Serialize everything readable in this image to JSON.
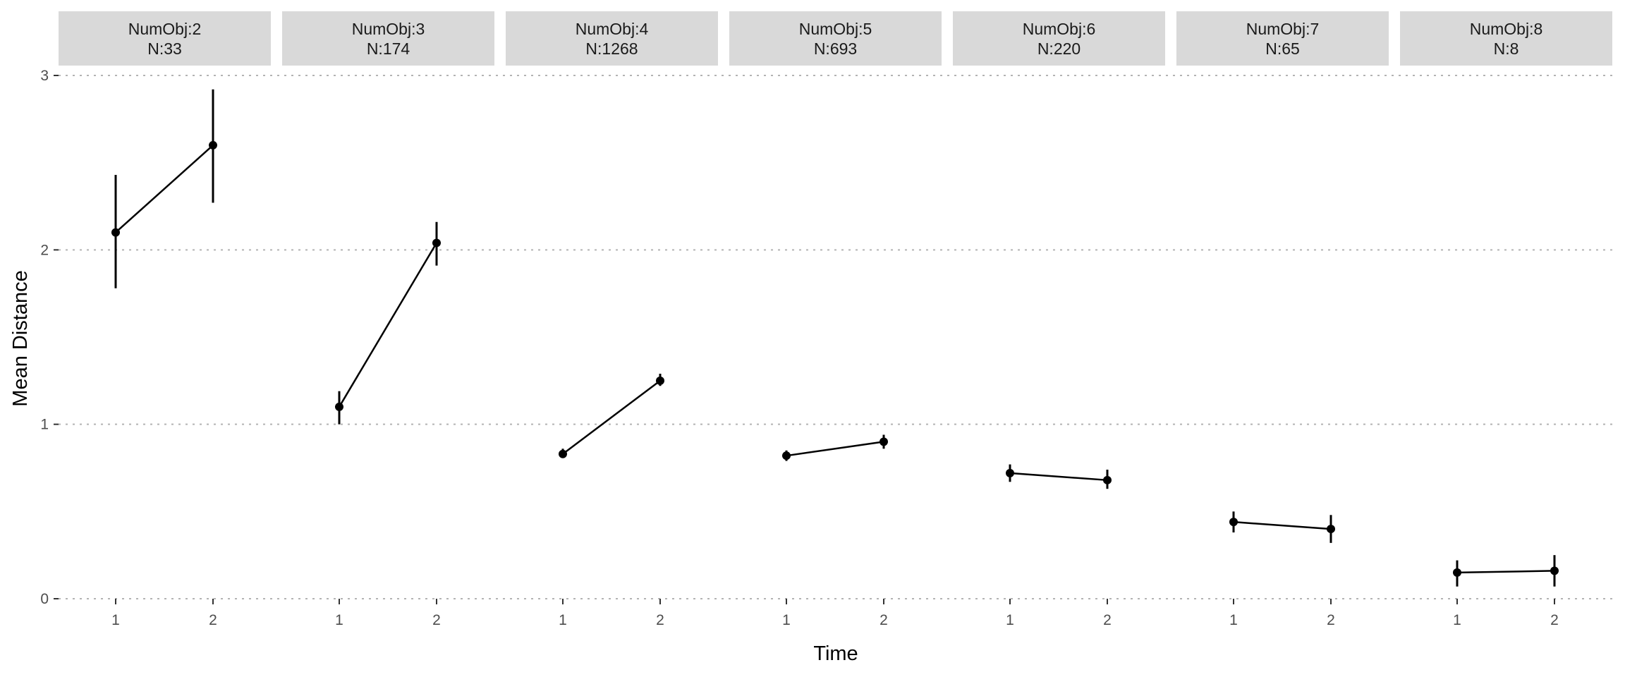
{
  "chart_data": {
    "type": "line",
    "facet_by": "NumObj",
    "xlabel": "Time",
    "ylabel": "Mean Distance",
    "ylim": [
      0,
      3
    ],
    "y_ticks": [
      "0",
      "1",
      "2",
      "3"
    ],
    "x_categories": [
      "1",
      "2"
    ],
    "grid": "horizontal dotted",
    "panels": [
      {
        "strip_line1": "NumObj:2",
        "strip_line2": "N:33",
        "points": [
          {
            "x": "1",
            "y": 2.1,
            "ymin": 1.78,
            "ymax": 2.43
          },
          {
            "x": "2",
            "y": 2.6,
            "ymin": 2.27,
            "ymax": 2.92
          }
        ]
      },
      {
        "strip_line1": "NumObj:3",
        "strip_line2": "N:174",
        "points": [
          {
            "x": "1",
            "y": 1.1,
            "ymin": 1.0,
            "ymax": 1.19
          },
          {
            "x": "2",
            "y": 2.04,
            "ymin": 1.91,
            "ymax": 2.16
          }
        ]
      },
      {
        "strip_line1": "NumObj:4",
        "strip_line2": "N:1268",
        "points": [
          {
            "x": "1",
            "y": 0.83,
            "ymin": 0.81,
            "ymax": 0.86
          },
          {
            "x": "2",
            "y": 1.25,
            "ymin": 1.22,
            "ymax": 1.29
          }
        ]
      },
      {
        "strip_line1": "NumObj:5",
        "strip_line2": "N:693",
        "points": [
          {
            "x": "1",
            "y": 0.82,
            "ymin": 0.79,
            "ymax": 0.85
          },
          {
            "x": "2",
            "y": 0.9,
            "ymin": 0.86,
            "ymax": 0.94
          }
        ]
      },
      {
        "strip_line1": "NumObj:6",
        "strip_line2": "N:220",
        "points": [
          {
            "x": "1",
            "y": 0.72,
            "ymin": 0.67,
            "ymax": 0.77
          },
          {
            "x": "2",
            "y": 0.68,
            "ymin": 0.63,
            "ymax": 0.74
          }
        ]
      },
      {
        "strip_line1": "NumObj:7",
        "strip_line2": "N:65",
        "points": [
          {
            "x": "1",
            "y": 0.44,
            "ymin": 0.38,
            "ymax": 0.5
          },
          {
            "x": "2",
            "y": 0.4,
            "ymin": 0.32,
            "ymax": 0.48
          }
        ]
      },
      {
        "strip_line1": "NumObj:8",
        "strip_line2": "N:8",
        "points": [
          {
            "x": "1",
            "y": 0.15,
            "ymin": 0.07,
            "ymax": 0.22
          },
          {
            "x": "2",
            "y": 0.16,
            "ymin": 0.07,
            "ymax": 0.25
          }
        ]
      }
    ]
  }
}
